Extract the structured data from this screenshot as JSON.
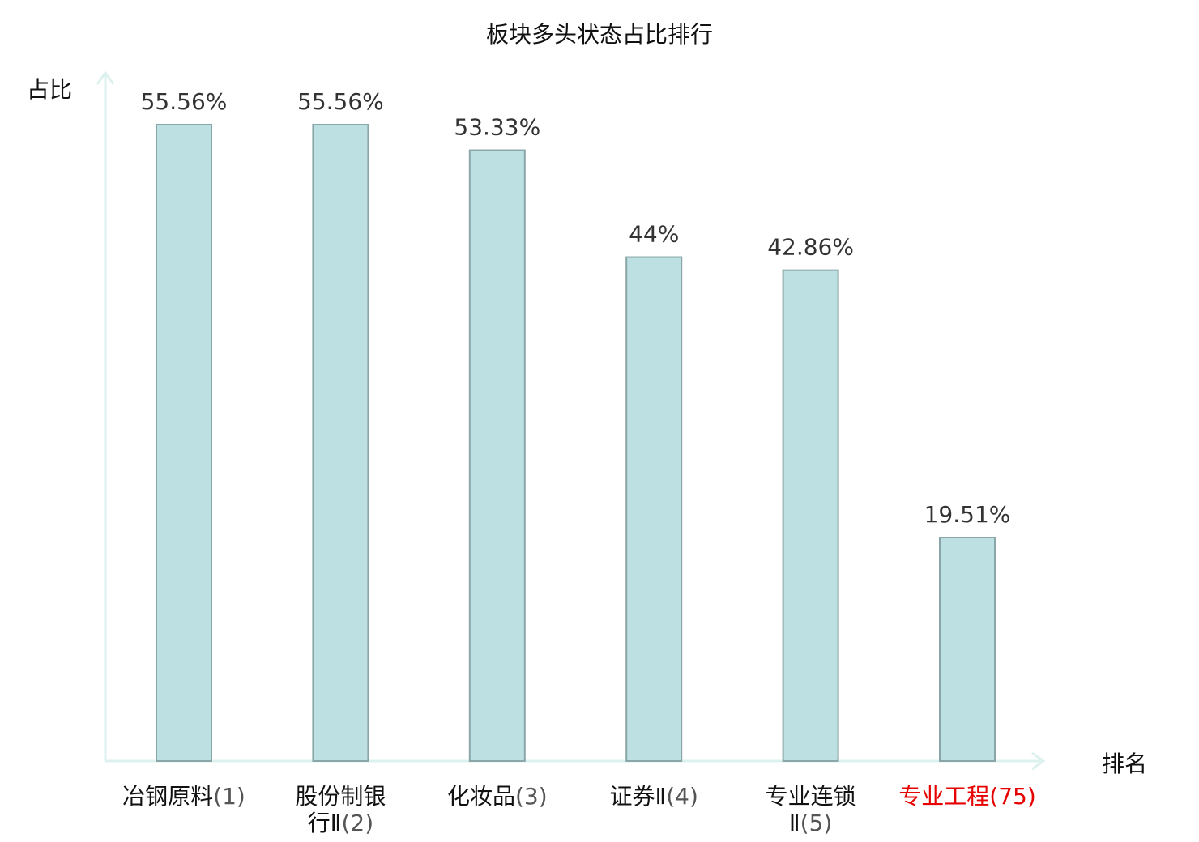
{
  "chart_data": {
    "type": "bar",
    "title": "板块多头状态占比排行",
    "ylabel": "占比",
    "xlabel": "排名",
    "ylim": [
      0,
      60
    ],
    "categories": [
      {
        "lines": [
          {
            "name": "冶钢原料",
            "rank": "(1)"
          }
        ],
        "highlight": false
      },
      {
        "lines": [
          {
            "name": "股份制银",
            "rank": ""
          },
          {
            "name": "行Ⅱ",
            "rank": "(2)"
          }
        ],
        "highlight": false
      },
      {
        "lines": [
          {
            "name": "化妆品",
            "rank": "(3)"
          }
        ],
        "highlight": false
      },
      {
        "lines": [
          {
            "name": "证券Ⅱ",
            "rank": "(4)"
          }
        ],
        "highlight": false
      },
      {
        "lines": [
          {
            "name": "专业连锁",
            "rank": ""
          },
          {
            "name": "Ⅱ",
            "rank": "(5)"
          }
        ],
        "highlight": false
      },
      {
        "lines": [
          {
            "name": "专业工程",
            "rank": "(75)"
          }
        ],
        "highlight": true
      }
    ],
    "values": [
      55.56,
      55.56,
      53.33,
      44,
      42.86,
      19.51
    ],
    "value_labels": [
      "55.56%",
      "55.56%",
      "53.33%",
      "44%",
      "42.86%",
      "19.51%"
    ],
    "grid": false,
    "legend": "none"
  },
  "colors": {
    "bar_fill": "#bde0e2",
    "bar_stroke": "#8ba6a8",
    "axis": "#ddf1ee",
    "highlight": "#e60000",
    "text": "#111111",
    "value_text": "#333333"
  }
}
